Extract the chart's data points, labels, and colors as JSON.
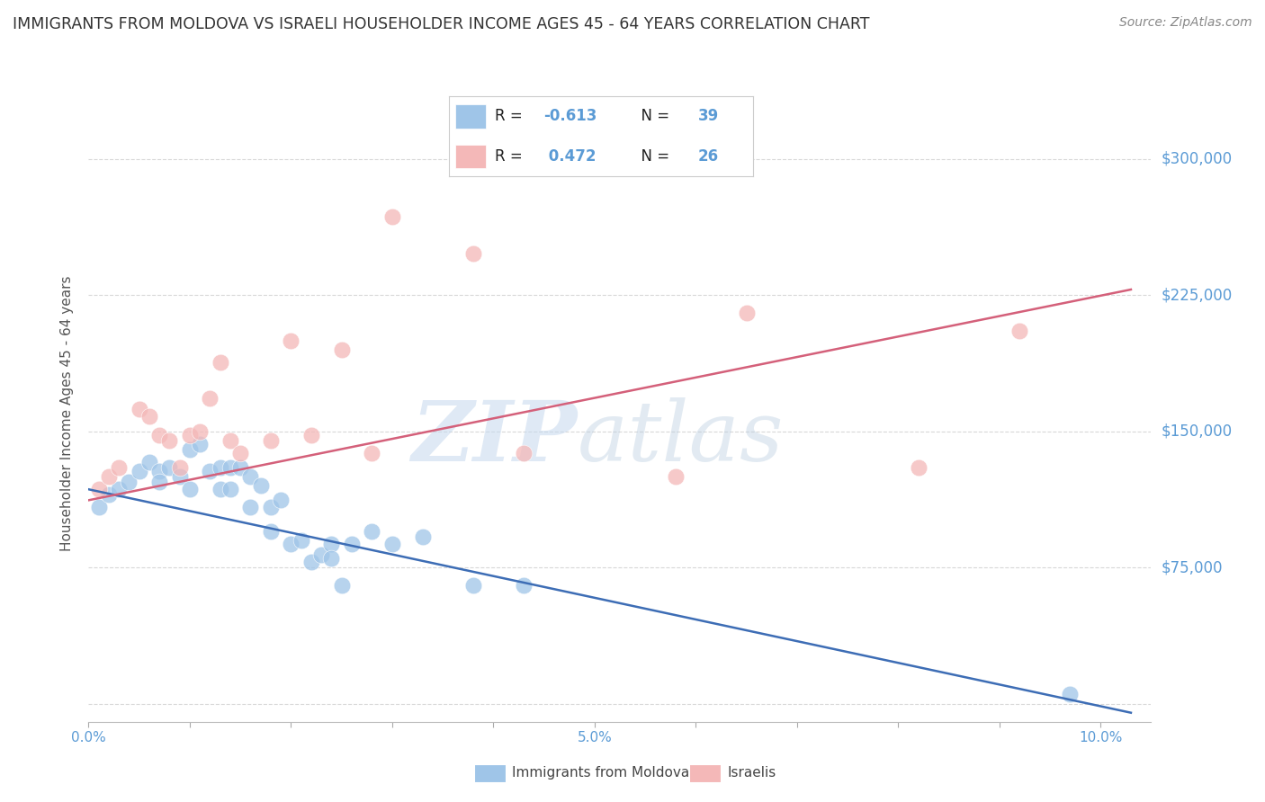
{
  "title": "IMMIGRANTS FROM MOLDOVA VS ISRAELI HOUSEHOLDER INCOME AGES 45 - 64 YEARS CORRELATION CHART",
  "source": "Source: ZipAtlas.com",
  "ylabel": "Householder Income Ages 45 - 64 years",
  "xlim": [
    0.0,
    0.105
  ],
  "ylim": [
    -10000,
    330000
  ],
  "yticks": [
    0,
    75000,
    150000,
    225000,
    300000
  ],
  "ytick_labels": [
    "",
    "$75,000",
    "$150,000",
    "$225,000",
    "$300,000"
  ],
  "xticks": [
    0.0,
    0.01,
    0.02,
    0.03,
    0.04,
    0.05,
    0.06,
    0.07,
    0.08,
    0.09,
    0.1
  ],
  "xtick_labels": [
    "0.0%",
    "",
    "",
    "",
    "",
    "5.0%",
    "",
    "",
    "",
    "",
    "10.0%"
  ],
  "background_color": "#ffffff",
  "grid_color": "#d8d8d8",
  "blue_color": "#9fc5e8",
  "pink_color": "#f4b8b8",
  "blue_fill_color": "#a8c8e8",
  "pink_fill_color": "#f4c2c2",
  "blue_line_color": "#3d6db5",
  "pink_line_color": "#d4607a",
  "axis_color": "#5b9bd5",
  "legend_box_color": "#d0e4f7",
  "legend_box_pink": "#f9d0d0",
  "blue_scatter_x": [
    0.001,
    0.002,
    0.003,
    0.004,
    0.005,
    0.006,
    0.007,
    0.007,
    0.008,
    0.009,
    0.01,
    0.01,
    0.011,
    0.012,
    0.013,
    0.013,
    0.014,
    0.014,
    0.015,
    0.016,
    0.016,
    0.017,
    0.018,
    0.018,
    0.019,
    0.02,
    0.021,
    0.022,
    0.023,
    0.024,
    0.024,
    0.025,
    0.026,
    0.028,
    0.03,
    0.033,
    0.038,
    0.043,
    0.097
  ],
  "blue_scatter_y": [
    108000,
    115000,
    118000,
    122000,
    128000,
    133000,
    128000,
    122000,
    130000,
    125000,
    118000,
    140000,
    143000,
    128000,
    130000,
    118000,
    130000,
    118000,
    130000,
    125000,
    108000,
    120000,
    108000,
    95000,
    112000,
    88000,
    90000,
    78000,
    82000,
    88000,
    80000,
    65000,
    88000,
    95000,
    88000,
    92000,
    65000,
    65000,
    5000
  ],
  "pink_scatter_x": [
    0.001,
    0.002,
    0.003,
    0.005,
    0.006,
    0.007,
    0.008,
    0.009,
    0.01,
    0.011,
    0.012,
    0.013,
    0.014,
    0.015,
    0.018,
    0.02,
    0.022,
    0.025,
    0.028,
    0.03,
    0.038,
    0.043,
    0.058,
    0.065,
    0.082,
    0.092
  ],
  "pink_scatter_y": [
    118000,
    125000,
    130000,
    162000,
    158000,
    148000,
    145000,
    130000,
    148000,
    150000,
    168000,
    188000,
    145000,
    138000,
    145000,
    200000,
    148000,
    195000,
    138000,
    268000,
    248000,
    138000,
    125000,
    215000,
    130000,
    205000
  ],
  "blue_trend_x": [
    0.0,
    0.103
  ],
  "blue_trend_y": [
    118000,
    -5000
  ],
  "pink_trend_x": [
    0.0,
    0.103
  ],
  "pink_trend_y": [
    112000,
    228000
  ]
}
